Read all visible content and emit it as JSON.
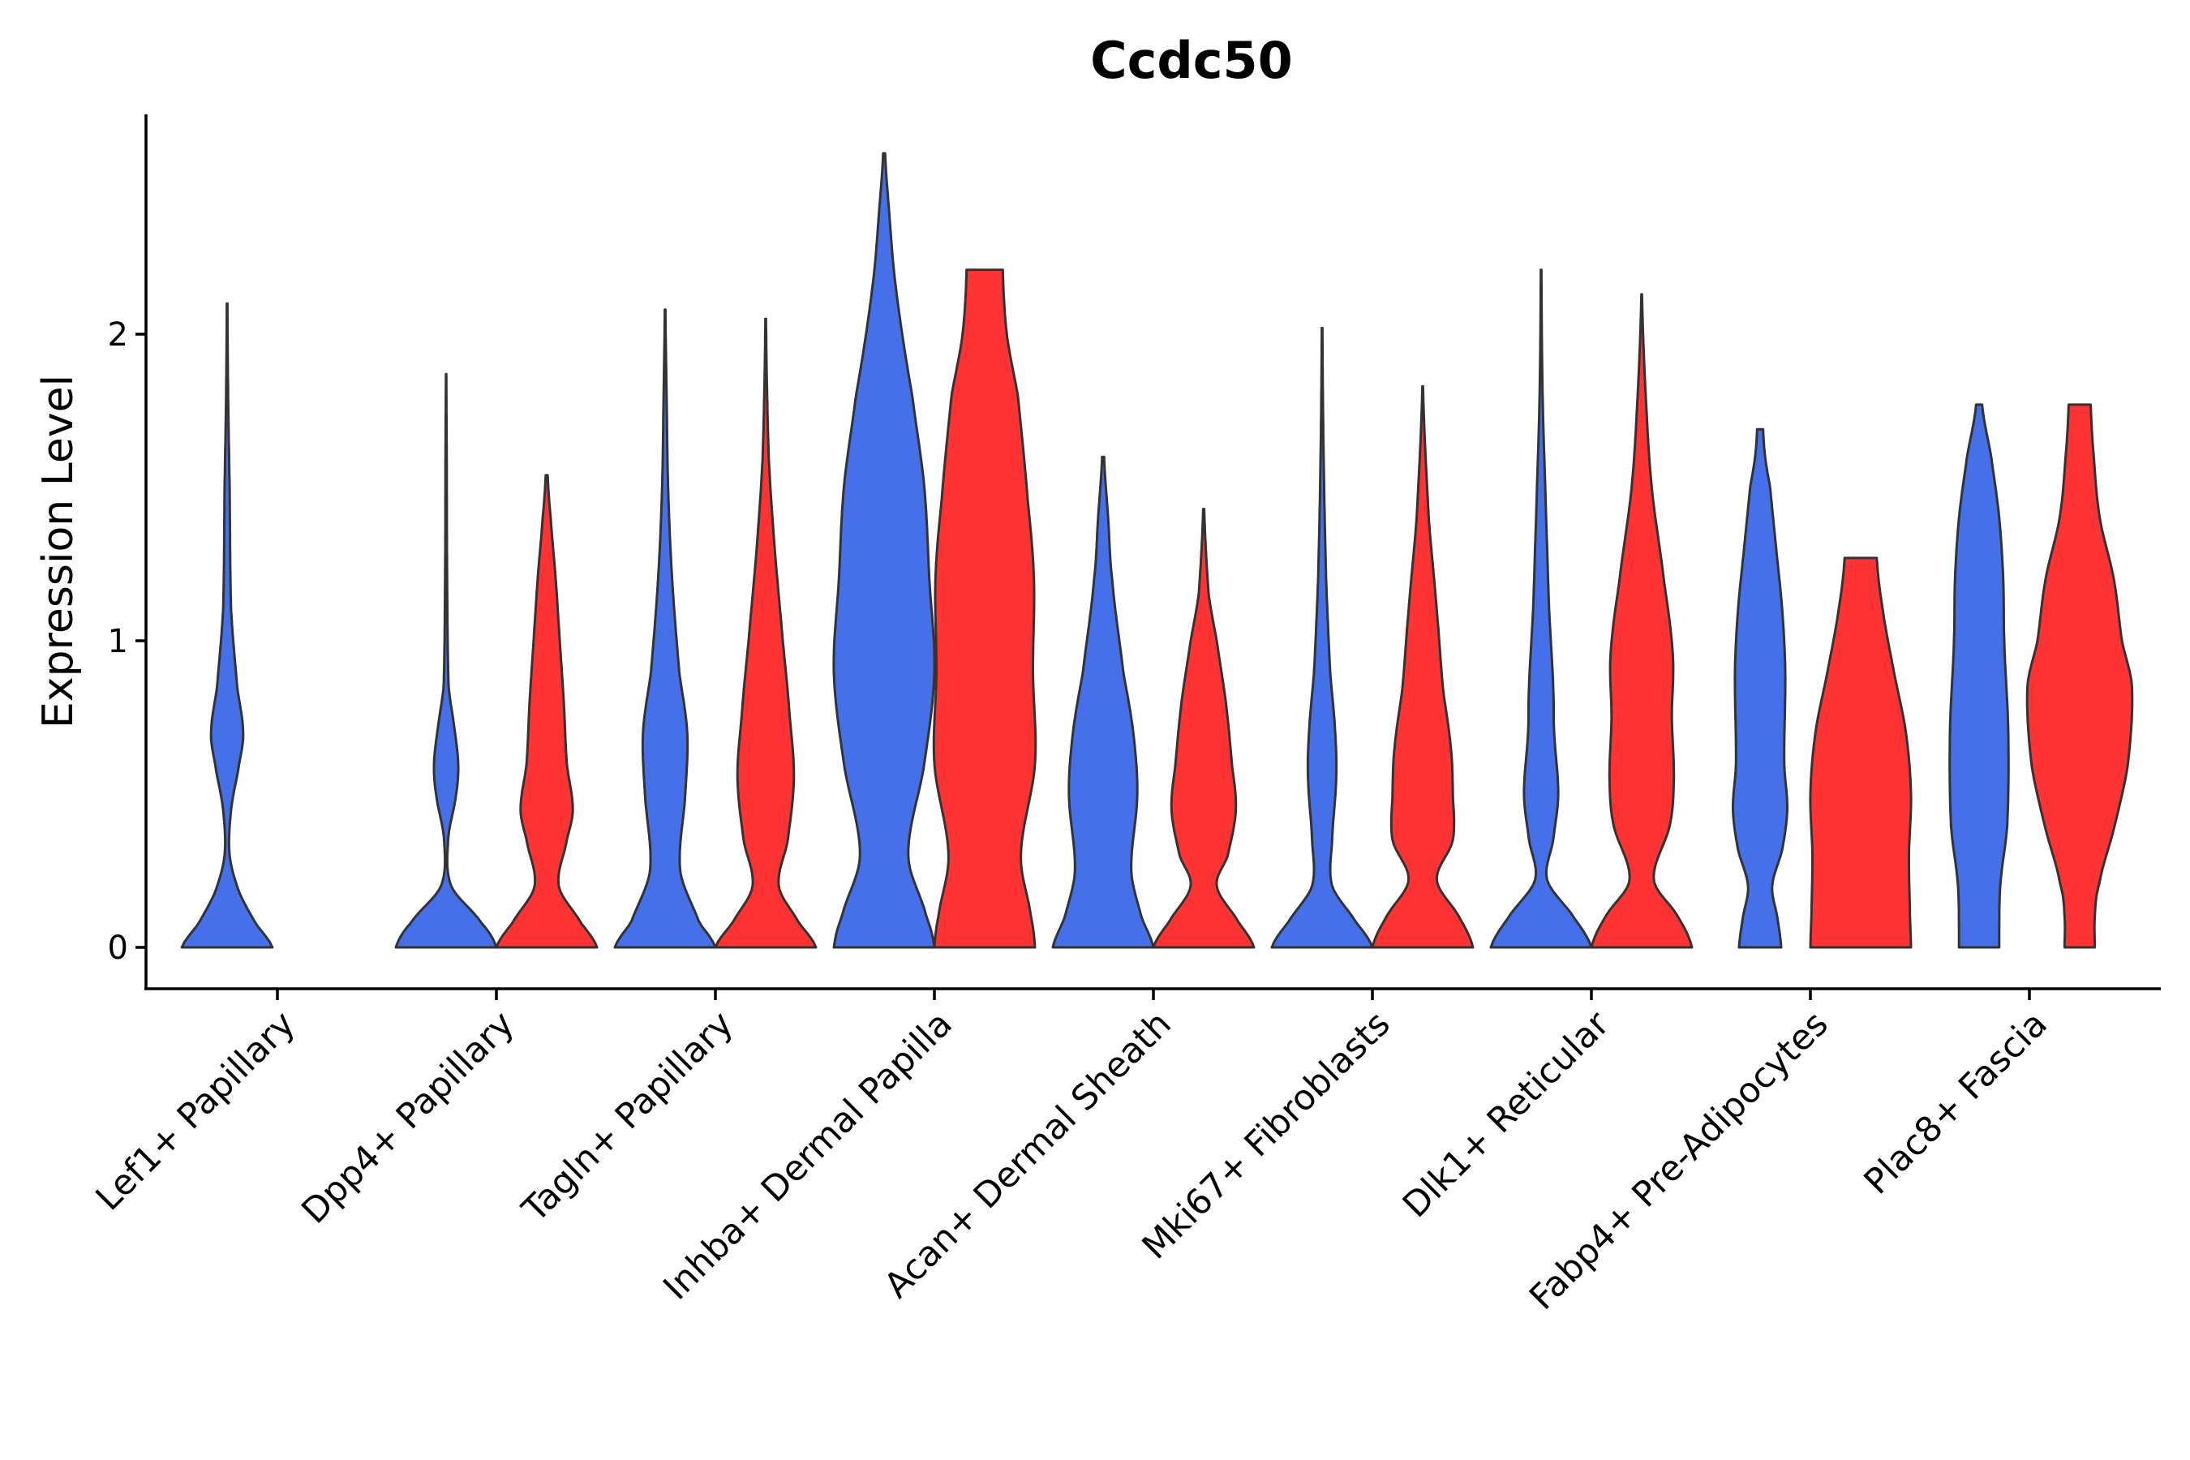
{
  "chart_data": {
    "type": "violin",
    "title": "Ccdc50",
    "xlabel": "",
    "ylabel": "Expression Level",
    "ylim": [
      -0.13,
      2.7
    ],
    "yticks": [
      0,
      1,
      2
    ],
    "grid": false,
    "legend": "none",
    "colors": {
      "group_a": "#4570EA",
      "group_b": "#FF3333",
      "outline": "#333333"
    },
    "categories": [
      "Lef1+ Papillary",
      "Dpp4+ Papillary",
      "Tagln+ Papillary",
      "Inhba+ Dermal Papilla",
      "Acan+ Dermal Sheath",
      "Mki67+ Fibroblasts",
      "Dlk1+ Reticular",
      "Fabp4+ Pre-Adipocytes",
      "Plac8+ Fascia"
    ],
    "series": [
      {
        "name": "group_a",
        "violins": [
          {
            "max": 2.1,
            "profile": [
              [
                0,
                0.45
              ],
              [
                0.08,
                0.28
              ],
              [
                0.18,
                0.12
              ],
              [
                0.3,
                0.025
              ],
              [
                0.45,
                0.04
              ],
              [
                0.6,
                0.12
              ],
              [
                0.7,
                0.16
              ],
              [
                0.85,
                0.1
              ],
              [
                1.1,
                0.04
              ],
              [
                1.5,
                0.025
              ],
              [
                1.8,
                0.01
              ],
              [
                2.1,
                0.003
              ]
            ]
          },
          {
            "max": 1.87,
            "profile": [
              [
                0,
                0.5
              ],
              [
                0.08,
                0.35
              ],
              [
                0.2,
                0.05
              ],
              [
                0.35,
                0.02
              ],
              [
                0.5,
                0.1
              ],
              [
                0.6,
                0.12
              ],
              [
                0.72,
                0.08
              ],
              [
                0.85,
                0.025
              ],
              [
                1.2,
                0.01
              ],
              [
                1.6,
                0.006
              ],
              [
                1.87,
                0.002
              ]
            ]
          },
          {
            "max": 2.08,
            "profile": [
              [
                0,
                0.5
              ],
              [
                0.08,
                0.34
              ],
              [
                0.25,
                0.15
              ],
              [
                0.5,
                0.2
              ],
              [
                0.7,
                0.22
              ],
              [
                0.9,
                0.14
              ],
              [
                1.2,
                0.07
              ],
              [
                1.5,
                0.03
              ],
              [
                1.8,
                0.015
              ],
              [
                2.08,
                0.003
              ]
            ]
          },
          {
            "max": 2.59,
            "profile": [
              [
                0,
                0.5
              ],
              [
                0.1,
                0.42
              ],
              [
                0.3,
                0.24
              ],
              [
                0.6,
                0.4
              ],
              [
                0.9,
                0.5
              ],
              [
                1.2,
                0.45
              ],
              [
                1.5,
                0.4
              ],
              [
                1.8,
                0.28
              ],
              [
                2.0,
                0.18
              ],
              [
                2.2,
                0.1
              ],
              [
                2.4,
                0.05
              ],
              [
                2.59,
                0.01
              ]
            ]
          },
          {
            "max": 1.6,
            "profile": [
              [
                0,
                0.5
              ],
              [
                0.1,
                0.38
              ],
              [
                0.25,
                0.28
              ],
              [
                0.5,
                0.34
              ],
              [
                0.7,
                0.3
              ],
              [
                0.9,
                0.2
              ],
              [
                1.2,
                0.09
              ],
              [
                1.4,
                0.05
              ],
              [
                1.6,
                0.01
              ]
            ]
          },
          {
            "max": 2.02,
            "profile": [
              [
                0,
                0.5
              ],
              [
                0.08,
                0.34
              ],
              [
                0.2,
                0.1
              ],
              [
                0.35,
                0.1
              ],
              [
                0.55,
                0.14
              ],
              [
                0.7,
                0.13
              ],
              [
                0.9,
                0.08
              ],
              [
                1.2,
                0.04
              ],
              [
                1.6,
                0.015
              ],
              [
                2.02,
                0.003
              ]
            ]
          },
          {
            "max": 2.21,
            "profile": [
              [
                0,
                0.5
              ],
              [
                0.1,
                0.32
              ],
              [
                0.22,
                0.06
              ],
              [
                0.35,
                0.12
              ],
              [
                0.5,
                0.17
              ],
              [
                0.7,
                0.13
              ],
              [
                0.85,
                0.12
              ],
              [
                1.1,
                0.08
              ],
              [
                1.4,
                0.05
              ],
              [
                1.8,
                0.015
              ],
              [
                2.21,
                0.003
              ]
            ]
          },
          {
            "max": 1.69,
            "profile": [
              [
                0,
                0.21
              ],
              [
                0.1,
                0.17
              ],
              [
                0.2,
                0.12
              ],
              [
                0.32,
                0.22
              ],
              [
                0.45,
                0.27
              ],
              [
                0.6,
                0.24
              ],
              [
                0.9,
                0.25
              ],
              [
                1.1,
                0.22
              ],
              [
                1.3,
                0.16
              ],
              [
                1.5,
                0.1
              ],
              [
                1.6,
                0.05
              ],
              [
                1.69,
                0.03
              ]
            ]
          },
          {
            "max": 1.77,
            "profile": [
              [
                0,
                0.2
              ],
              [
                0.2,
                0.21
              ],
              [
                0.4,
                0.28
              ],
              [
                0.7,
                0.29
              ],
              [
                1.0,
                0.25
              ],
              [
                1.2,
                0.24
              ],
              [
                1.4,
                0.2
              ],
              [
                1.6,
                0.12
              ],
              [
                1.77,
                0.03
              ]
            ]
          }
        ]
      },
      {
        "name": "group_b",
        "violins": [
          null,
          {
            "max": 1.54,
            "profile": [
              [
                0,
                0.5
              ],
              [
                0.08,
                0.34
              ],
              [
                0.2,
                0.12
              ],
              [
                0.35,
                0.2
              ],
              [
                0.45,
                0.26
              ],
              [
                0.6,
                0.2
              ],
              [
                0.8,
                0.17
              ],
              [
                1.0,
                0.13
              ],
              [
                1.2,
                0.09
              ],
              [
                1.4,
                0.04
              ],
              [
                1.54,
                0.01
              ]
            ]
          },
          {
            "max": 2.05,
            "profile": [
              [
                0,
                0.5
              ],
              [
                0.08,
                0.33
              ],
              [
                0.2,
                0.13
              ],
              [
                0.35,
                0.22
              ],
              [
                0.55,
                0.28
              ],
              [
                0.75,
                0.24
              ],
              [
                1.0,
                0.17
              ],
              [
                1.3,
                0.09
              ],
              [
                1.6,
                0.03
              ],
              [
                2.05,
                0.003
              ]
            ]
          },
          {
            "max": 2.21,
            "profile": [
              [
                0,
                0.5
              ],
              [
                0.1,
                0.46
              ],
              [
                0.3,
                0.36
              ],
              [
                0.6,
                0.5
              ],
              [
                0.9,
                0.48
              ],
              [
                1.2,
                0.49
              ],
              [
                1.45,
                0.43
              ],
              [
                1.8,
                0.33
              ],
              [
                2.0,
                0.22
              ],
              [
                2.21,
                0.18
              ]
            ]
          },
          {
            "max": 1.43,
            "profile": [
              [
                0,
                0.5
              ],
              [
                0.08,
                0.35
              ],
              [
                0.2,
                0.13
              ],
              [
                0.3,
                0.24
              ],
              [
                0.45,
                0.32
              ],
              [
                0.6,
                0.28
              ],
              [
                0.8,
                0.22
              ],
              [
                1.0,
                0.13
              ],
              [
                1.15,
                0.05
              ],
              [
                1.43,
                0.005
              ]
            ]
          },
          {
            "max": 1.83,
            "profile": [
              [
                0,
                0.5
              ],
              [
                0.1,
                0.36
              ],
              [
                0.22,
                0.14
              ],
              [
                0.35,
                0.3
              ],
              [
                0.5,
                0.3
              ],
              [
                0.65,
                0.28
              ],
              [
                0.85,
                0.2
              ],
              [
                1.1,
                0.14
              ],
              [
                1.4,
                0.06
              ],
              [
                1.83,
                0.003
              ]
            ]
          },
          {
            "max": 2.13,
            "profile": [
              [
                0,
                0.5
              ],
              [
                0.1,
                0.36
              ],
              [
                0.22,
                0.12
              ],
              [
                0.4,
                0.28
              ],
              [
                0.55,
                0.32
              ],
              [
                0.75,
                0.3
              ],
              [
                0.95,
                0.31
              ],
              [
                1.2,
                0.22
              ],
              [
                1.5,
                0.1
              ],
              [
                1.8,
                0.04
              ],
              [
                2.13,
                0.003
              ]
            ]
          },
          {
            "max": 1.27,
            "profile": [
              [
                0,
                0.5
              ],
              [
                0.1,
                0.49
              ],
              [
                0.3,
                0.48
              ],
              [
                0.5,
                0.5
              ],
              [
                0.7,
                0.45
              ],
              [
                0.9,
                0.33
              ],
              [
                1.1,
                0.22
              ],
              [
                1.27,
                0.16
              ]
            ]
          },
          {
            "max": 1.77,
            "profile": [
              [
                0,
                0.15
              ],
              [
                0.1,
                0.15
              ],
              [
                0.2,
                0.19
              ],
              [
                0.4,
                0.35
              ],
              [
                0.6,
                0.48
              ],
              [
                0.85,
                0.52
              ],
              [
                1.0,
                0.42
              ],
              [
                1.2,
                0.34
              ],
              [
                1.4,
                0.2
              ],
              [
                1.6,
                0.14
              ],
              [
                1.77,
                0.11
              ]
            ]
          }
        ]
      }
    ]
  }
}
